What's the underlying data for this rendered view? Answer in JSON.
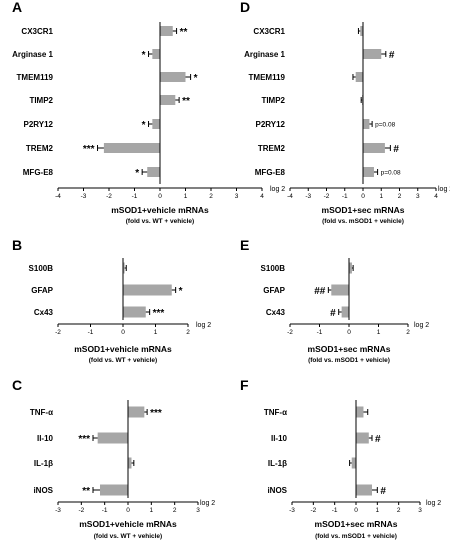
{
  "chart_data": [
    {
      "panel": "A",
      "type": "bar",
      "orientation": "horizontal",
      "categories": [
        "CX3CR1",
        "Arginase 1",
        "TMEM119",
        "TIMP2",
        "P2RY12",
        "TREM2",
        "MFG-E8"
      ],
      "values": [
        0.5,
        -0.3,
        1.0,
        0.6,
        -0.3,
        -2.2,
        -0.5
      ],
      "errors": [
        0.15,
        0.15,
        0.2,
        0.15,
        0.15,
        0.25,
        0.2
      ],
      "annotations": [
        "**",
        "*",
        "*",
        "**",
        "*",
        "***",
        "*"
      ],
      "xlim": [
        -4,
        4
      ],
      "xticks": [
        "-4",
        "-3",
        "-2",
        "-1",
        "0",
        "1",
        "2",
        "3",
        "4"
      ],
      "unit": "log 2",
      "title": "mSOD1+vehicle mRNAs",
      "subtitle": "(fold vs. WT + vehicle)"
    },
    {
      "panel": "D",
      "type": "bar",
      "orientation": "horizontal",
      "categories": [
        "CX3CR1",
        "Arginase 1",
        "TMEM119",
        "TIMP2",
        "P2RY12",
        "TREM2",
        "MFG-E8"
      ],
      "values": [
        -0.15,
        1.0,
        -0.4,
        -0.05,
        0.35,
        1.2,
        0.6
      ],
      "errors": [
        0.1,
        0.25,
        0.15,
        0.05,
        0.15,
        0.3,
        0.2
      ],
      "annotations": [
        "",
        "#",
        "",
        "",
        "p=0.08",
        "#",
        "p=0.08"
      ],
      "xlim": [
        -4,
        4
      ],
      "xticks": [
        "-4",
        "-3",
        "-2",
        "-1",
        "0",
        "1",
        "2",
        "3",
        "4"
      ],
      "unit": "log 2",
      "title": "mSOD1+sec mRNAs",
      "subtitle": "(fold vs. mSOD1 + vehicle)"
    },
    {
      "panel": "B",
      "type": "bar",
      "orientation": "horizontal",
      "categories": [
        "S100B",
        "GFAP",
        "Cx43"
      ],
      "values": [
        0.05,
        1.5,
        0.7
      ],
      "errors": [
        0.05,
        0.12,
        0.12
      ],
      "annotations": [
        "",
        "*",
        "***"
      ],
      "xlim": [
        -2,
        2
      ],
      "xticks": [
        "-2",
        "-1",
        "0",
        "1",
        "2"
      ],
      "unit": "log 2",
      "title": "mSOD1+vehicle mRNAs",
      "subtitle": "(fold vs. WT + vehicle)"
    },
    {
      "panel": "E",
      "type": "bar",
      "orientation": "horizontal",
      "categories": [
        "S100B",
        "GFAP",
        "Cx43"
      ],
      "values": [
        0.1,
        -0.6,
        -0.25
      ],
      "errors": [
        0.04,
        0.1,
        0.1
      ],
      "annotations": [
        "",
        "##",
        "#"
      ],
      "xlim": [
        -2,
        2
      ],
      "xticks": [
        "-2",
        "-1",
        "0",
        "1",
        "2"
      ],
      "unit": "log 2",
      "title": "mSOD1+sec mRNAs",
      "subtitle": "(fold vs. mSOD1 + vehicle)"
    },
    {
      "panel": "C",
      "type": "bar",
      "orientation": "horizontal",
      "categories": [
        "TNF-α",
        "Il-10",
        "IL-1β",
        "iNOS"
      ],
      "values": [
        0.7,
        -1.3,
        0.15,
        -1.2
      ],
      "errors": [
        0.12,
        0.2,
        0.1,
        0.3
      ],
      "annotations": [
        "***",
        "***",
        "",
        "**"
      ],
      "xlim": [
        -3,
        3
      ],
      "xticks": [
        "-3",
        "-2",
        "-1",
        "0",
        "1",
        "2",
        "3"
      ],
      "unit": "log 2",
      "title": "mSOD1+vehicle mRNAs",
      "subtitle": "(fold vs. WT + vehicle)"
    },
    {
      "panel": "F",
      "type": "bar",
      "orientation": "horizontal",
      "categories": [
        "TNF-α",
        "Il-10",
        "IL-1β",
        "iNOS"
      ],
      "values": [
        0.35,
        0.6,
        -0.2,
        0.75
      ],
      "errors": [
        0.2,
        0.15,
        0.1,
        0.25
      ],
      "annotations": [
        "",
        "#",
        "",
        "#"
      ],
      "xlim": [
        -3,
        3
      ],
      "xticks": [
        "-3",
        "-2",
        "-1",
        "0",
        "1",
        "2",
        "3"
      ],
      "unit": "log 2",
      "title": "mSOD1+sec mRNAs",
      "subtitle": "(fold vs. mSOD1 + vehicle)"
    }
  ],
  "style": {
    "bar_color": "#a6a6a6",
    "axis_color": "#000000"
  }
}
